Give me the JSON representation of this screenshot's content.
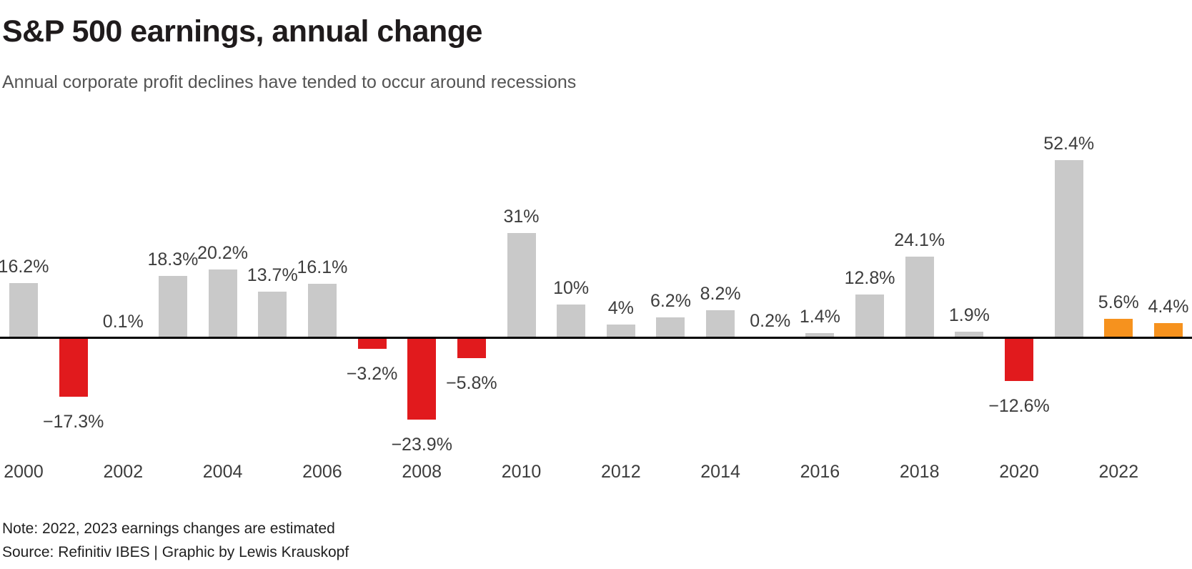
{
  "header": {
    "title": "S&P 500 earnings, annual change",
    "subtitle": "Annual corporate profit declines have tended to occur around recessions"
  },
  "footer": {
    "note": "Note: 2022, 2023 earnings changes are estimated",
    "source": "Source: Refinitiv IBES | Graphic by Lewis Krauskopf"
  },
  "colors": {
    "gain": "#c9c9c9",
    "decline": "#e11a1d",
    "estimate": "#f6921e",
    "axis_line": "#000000",
    "title_text": "#1f1b1c",
    "subtitle_text": "#545454",
    "label_text": "#3d3d3d",
    "footer_text": "#1f1f1f"
  },
  "chart_data": {
    "type": "bar",
    "title": "S&P 500 earnings, annual change",
    "subtitle": "Annual corporate profit declines have tended to occur around recessions",
    "xlabel": "",
    "ylabel": "",
    "ylim": [
      -23.9,
      52.4
    ],
    "grid": false,
    "legend": false,
    "value_label_format": "percent",
    "bars": [
      {
        "year": 2000,
        "value": 16.2,
        "label": "16.2%",
        "kind": "gain"
      },
      {
        "year": 2001,
        "value": -17.3,
        "label": "−17.3%",
        "kind": "decline"
      },
      {
        "year": 2002,
        "value": 0.1,
        "label": "0.1%",
        "kind": "gain"
      },
      {
        "year": 2003,
        "value": 18.3,
        "label": "18.3%",
        "kind": "gain"
      },
      {
        "year": 2004,
        "value": 20.2,
        "label": "20.2%",
        "kind": "gain"
      },
      {
        "year": 2005,
        "value": 13.7,
        "label": "13.7%",
        "kind": "gain"
      },
      {
        "year": 2006,
        "value": 16.1,
        "label": "16.1%",
        "kind": "gain"
      },
      {
        "year": 2007,
        "value": -3.2,
        "label": "−3.2%",
        "kind": "decline"
      },
      {
        "year": 2008,
        "value": -23.9,
        "label": "−23.9%",
        "kind": "decline"
      },
      {
        "year": 2009,
        "value": -5.8,
        "label": "−5.8%",
        "kind": "decline"
      },
      {
        "year": 2010,
        "value": 31,
        "label": "31%",
        "kind": "gain"
      },
      {
        "year": 2011,
        "value": 10,
        "label": "10%",
        "kind": "gain"
      },
      {
        "year": 2012,
        "value": 4,
        "label": "4%",
        "kind": "gain"
      },
      {
        "year": 2013,
        "value": 6.2,
        "label": "6.2%",
        "kind": "gain"
      },
      {
        "year": 2014,
        "value": 8.2,
        "label": "8.2%",
        "kind": "gain"
      },
      {
        "year": 2015,
        "value": 0.2,
        "label": "0.2%",
        "kind": "gain"
      },
      {
        "year": 2016,
        "value": 1.4,
        "label": "1.4%",
        "kind": "gain"
      },
      {
        "year": 2017,
        "value": 12.8,
        "label": "12.8%",
        "kind": "gain"
      },
      {
        "year": 2018,
        "value": 24.1,
        "label": "24.1%",
        "kind": "gain"
      },
      {
        "year": 2019,
        "value": 1.9,
        "label": "1.9%",
        "kind": "gain"
      },
      {
        "year": 2020,
        "value": -12.6,
        "label": "−12.6%",
        "kind": "decline"
      },
      {
        "year": 2021,
        "value": 52.4,
        "label": "52.4%",
        "kind": "gain"
      },
      {
        "year": 2022,
        "value": 5.6,
        "label": "5.6%",
        "kind": "estimate"
      },
      {
        "year": 2023,
        "value": 4.4,
        "label": "4.4%",
        "kind": "estimate"
      }
    ],
    "x_tick_labels": [
      "2000",
      "2002",
      "2004",
      "2006",
      "2008",
      "2010",
      "2012",
      "2014",
      "2016",
      "2018",
      "2020",
      "2022"
    ],
    "note": "Note: 2022, 2023 earnings changes are estimated",
    "source": "Source: Refinitiv IBES | Graphic by Lewis Krauskopf"
  }
}
